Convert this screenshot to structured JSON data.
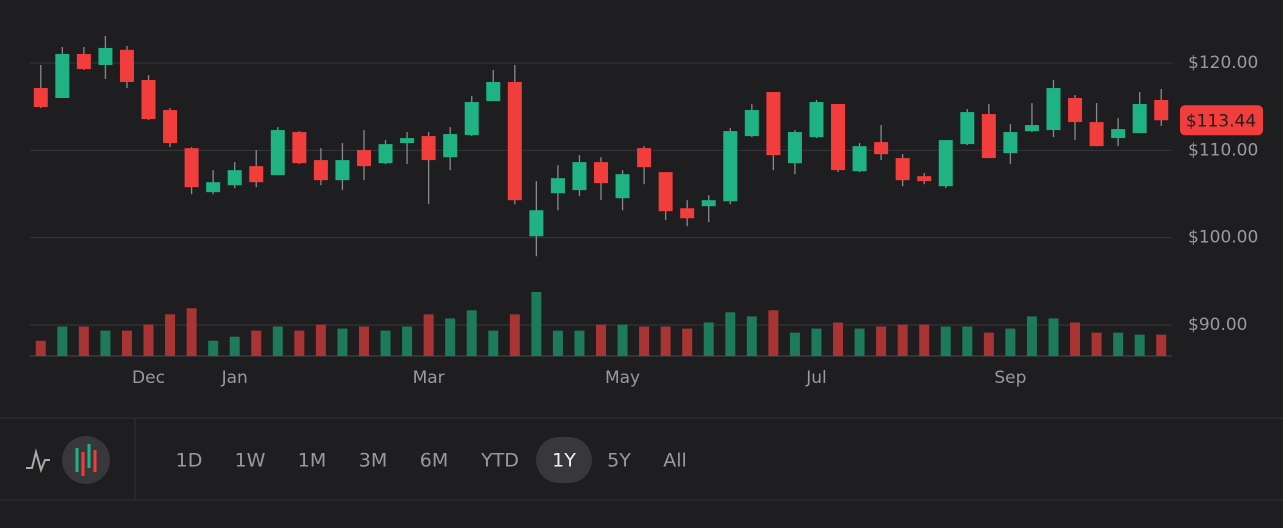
{
  "chart_data": {
    "type": "candlestick",
    "categories": [
      null,
      null,
      null,
      null,
      null,
      "Dec",
      null,
      null,
      null,
      "Jan",
      null,
      null,
      null,
      null,
      null,
      null,
      null,
      null,
      "Mar",
      null,
      null,
      null,
      null,
      null,
      null,
      null,
      null,
      "May",
      null,
      null,
      null,
      null,
      null,
      null,
      null,
      null,
      "Jul",
      null,
      null,
      null,
      null,
      null,
      null,
      null,
      null,
      "Sep",
      null,
      null,
      null,
      null,
      null,
      null,
      null
    ],
    "open": [
      117.13,
      115.99,
      121.03,
      119.77,
      121.5,
      118.05,
      114.61,
      110.25,
      105.21,
      106.01,
      108.19,
      107.16,
      112.09,
      108.88,
      106.58,
      110.02,
      108.53,
      110.83,
      111.63,
      109.22,
      111.74,
      115.64,
      117.82,
      100.16,
      105.09,
      105.44,
      108.65,
      104.52,
      110.25,
      107.5,
      103.37,
      103.6,
      104.17,
      111.63,
      116.67,
      108.53,
      111.51,
      115.3,
      107.61,
      110.94,
      109.11,
      107.04,
      105.89,
      110.71,
      114.15,
      109.68,
      112.2,
      112.32,
      115.99,
      113.23,
      111.4,
      111.97,
      115.76
    ],
    "high": [
      119.77,
      121.83,
      121.83,
      123.1,
      121.95,
      118.62,
      114.84,
      110.37,
      107.73,
      108.65,
      110.02,
      112.66,
      112.2,
      110.25,
      110.83,
      112.32,
      111.17,
      112.09,
      112.09,
      112.66,
      116.22,
      119.2,
      119.77,
      106.47,
      108.3,
      109.45,
      109.22,
      107.73,
      110.48,
      107.5,
      104.29,
      104.86,
      112.55,
      115.3,
      116.67,
      112.32,
      115.76,
      115.3,
      110.83,
      112.89,
      109.56,
      107.39,
      111.17,
      114.72,
      115.3,
      113.0,
      115.41,
      118.05,
      116.33,
      115.41,
      113.69,
      116.67,
      117.02
    ],
    "low": [
      114.84,
      116.0,
      119.2,
      118.17,
      117.13,
      113.46,
      110.37,
      104.98,
      104.98,
      105.67,
      105.78,
      107.16,
      108.42,
      106.01,
      105.44,
      106.58,
      108.42,
      108.42,
      103.83,
      107.73,
      111.63,
      115.64,
      103.83,
      97.87,
      103.14,
      104.75,
      104.29,
      103.14,
      106.12,
      102.0,
      101.31,
      101.77,
      103.83,
      111.51,
      107.73,
      107.27,
      111.4,
      107.5,
      107.5,
      108.88,
      105.89,
      106.12,
      105.67,
      110.6,
      109.11,
      108.42,
      112.09,
      111.51,
      111.17,
      110.48,
      110.48,
      111.97,
      112.78
    ],
    "close": [
      114.95,
      121.03,
      119.31,
      121.72,
      117.82,
      113.58,
      110.83,
      105.78,
      106.35,
      107.73,
      106.35,
      112.32,
      108.53,
      106.58,
      108.88,
      108.19,
      110.71,
      111.4,
      108.88,
      111.86,
      115.53,
      117.82,
      104.29,
      103.14,
      106.81,
      108.65,
      106.24,
      107.27,
      108.07,
      103.03,
      102.22,
      104.29,
      112.2,
      114.61,
      109.45,
      112.09,
      115.53,
      107.73,
      110.48,
      109.56,
      106.58,
      106.47,
      111.17,
      114.38,
      109.11,
      112.09,
      112.89,
      117.13,
      113.23,
      110.48,
      112.43,
      115.3,
      113.44
    ],
    "volume": [
      15,
      29,
      29,
      25,
      25,
      31,
      41,
      47,
      15,
      19,
      25,
      29,
      25,
      31,
      27,
      29,
      25,
      29,
      41,
      37,
      45,
      25,
      41,
      63,
      25,
      25,
      31,
      31,
      29,
      29,
      27,
      33,
      43,
      39,
      45,
      23,
      27,
      33,
      27,
      29,
      31,
      31,
      29,
      29,
      23,
      27,
      39,
      37,
      33,
      23,
      23,
      21,
      21
    ],
    "up_color": "#1fb383",
    "down_color": "#f23d3d",
    "up_volume_color": "#1d7a5a",
    "down_volume_color": "#a83434",
    "ylim": [
      86.45,
      127.21
    ],
    "yticks": [
      {
        "value": 120,
        "label": "$120.00"
      },
      {
        "value": 110,
        "label": "$110.00"
      },
      {
        "value": 100,
        "label": "$100.00"
      },
      {
        "value": 90,
        "label": "$90.00"
      }
    ],
    "grid": true,
    "last_value": {
      "value": 113.44,
      "label": "$113.44"
    }
  },
  "controls": {
    "ranges": [
      "1D",
      "1W",
      "1M",
      "3M",
      "6M",
      "YTD",
      "1Y",
      "5Y",
      "All"
    ],
    "selected_index": 6
  }
}
